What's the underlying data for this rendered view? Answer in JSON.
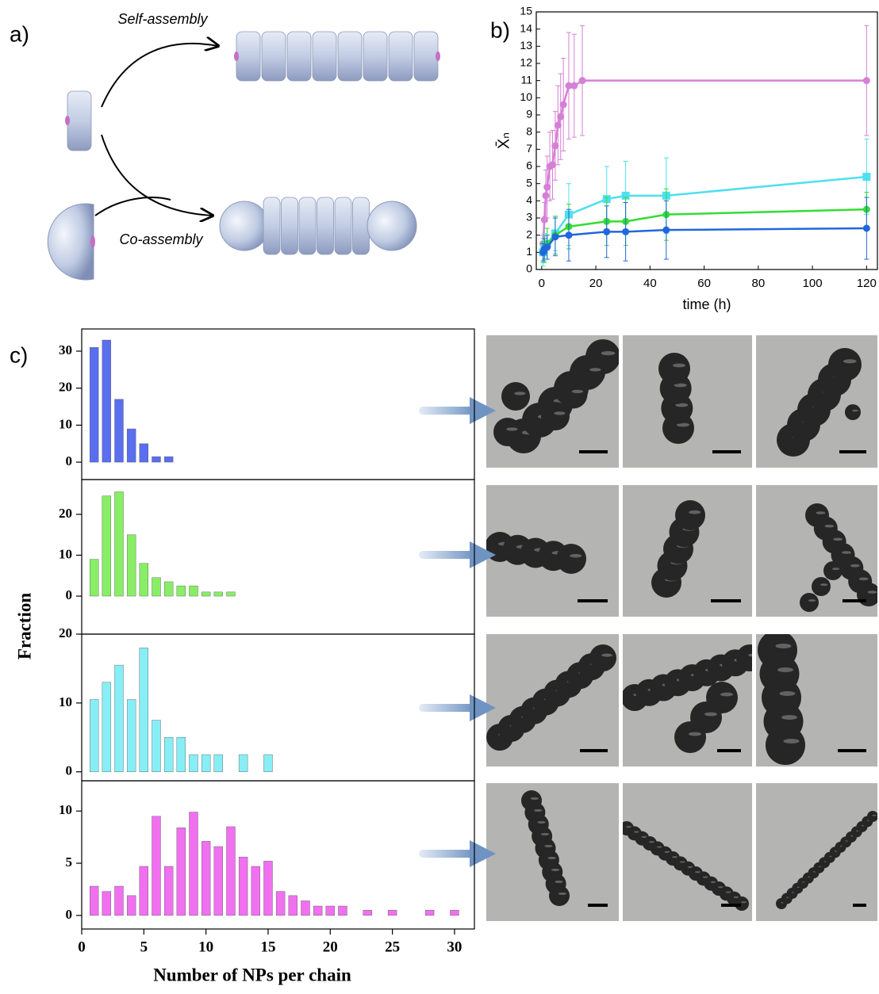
{
  "panel_labels": [
    "a)",
    "b)",
    "c)"
  ],
  "diagram": {
    "self_assembly": "Self-assembly",
    "co_assembly": "Co-assembly"
  },
  "chart_data": [
    {
      "type": "line",
      "xlabel": "time (h)",
      "ylabel": "X̄ₙ",
      "xlim": [
        -2,
        124
      ],
      "xticks": [
        0,
        20,
        40,
        60,
        80,
        100,
        120
      ],
      "ylim": [
        0,
        15
      ],
      "yticks": [
        0,
        1,
        2,
        3,
        4,
        5,
        6,
        7,
        8,
        9,
        10,
        11,
        12,
        13,
        14,
        15
      ],
      "series": [
        {
          "color": "#d67fd6",
          "marker": "circle",
          "x": [
            0.5,
            1,
            1.5,
            2,
            3,
            4,
            5,
            6,
            7,
            8,
            10,
            12,
            15,
            120
          ],
          "values": [
            1.5,
            2.9,
            4.3,
            4.8,
            6.0,
            6.1,
            7.2,
            8.4,
            8.9,
            9.6,
            10.7,
            10.7,
            11.0,
            11.0
          ],
          "errors": [
            0.5,
            1.0,
            1.5,
            1.8,
            2.0,
            2.0,
            2.0,
            2.3,
            2.5,
            2.7,
            3.1,
            3.0,
            3.2,
            3.2
          ]
        },
        {
          "color": "#4de0f0",
          "marker": "square",
          "x": [
            0.5,
            1,
            2,
            5,
            10,
            24,
            31,
            46,
            120
          ],
          "values": [
            1.0,
            1.3,
            1.5,
            2.1,
            3.2,
            4.1,
            4.3,
            4.3,
            5.4
          ],
          "errors": [
            0.8,
            0.8,
            0.9,
            1.0,
            1.8,
            1.9,
            2.0,
            2.2,
            2.2
          ]
        },
        {
          "color": "#33dd33",
          "marker": "circle",
          "x": [
            0.5,
            1,
            2,
            5,
            10,
            24,
            31,
            46,
            120
          ],
          "values": [
            1.0,
            1.2,
            1.5,
            2.0,
            2.5,
            2.8,
            2.8,
            3.2,
            3.5
          ],
          "errors": [
            0.6,
            0.8,
            0.9,
            1.1,
            1.3,
            1.4,
            1.4,
            1.5,
            1.0
          ]
        },
        {
          "color": "#2266dd",
          "marker": "circle",
          "x": [
            0.5,
            1,
            2,
            5,
            10,
            24,
            31,
            46,
            120
          ],
          "values": [
            1.0,
            1.2,
            1.3,
            1.9,
            2.0,
            2.2,
            2.2,
            2.3,
            2.4
          ],
          "errors": [
            0.5,
            0.6,
            0.7,
            1.1,
            1.5,
            1.5,
            1.7,
            1.7,
            1.8
          ]
        }
      ]
    },
    {
      "type": "bar",
      "color": "#5a6ef0",
      "xlim": [
        0,
        31.6
      ],
      "x": [
        1,
        2,
        3,
        4,
        5,
        6,
        7
      ],
      "values": [
        31,
        33,
        17,
        9,
        5,
        1.5,
        1.5
      ],
      "ylim": [
        -4.7,
        36
      ],
      "yticks": [
        0,
        10,
        20,
        30
      ]
    },
    {
      "type": "bar",
      "color": "#88ee66",
      "xlim": [
        0,
        31.6
      ],
      "x": [
        1,
        2,
        3,
        4,
        5,
        6,
        7,
        8,
        9,
        10,
        11,
        12
      ],
      "values": [
        9,
        24.5,
        25.5,
        15,
        8,
        4.5,
        3.5,
        2.5,
        2.5,
        1,
        1,
        1
      ],
      "ylim": [
        -9.3,
        28.5
      ],
      "yticks": [
        0,
        10,
        20
      ]
    },
    {
      "type": "bar",
      "color": "#88eef5",
      "xlim": [
        0,
        31.6
      ],
      "ylabel": "Fraction",
      "x": [
        1,
        2,
        3,
        4,
        5,
        6,
        7,
        8,
        9,
        10,
        11,
        12,
        13,
        14,
        15
      ],
      "values": [
        10.5,
        13,
        15.5,
        10.5,
        18,
        7.5,
        5,
        5,
        2.5,
        2.5,
        2.5,
        0,
        2.5,
        0,
        2.5
      ],
      "ylim": [
        -1.3,
        20
      ],
      "yticks": [
        0,
        10,
        20
      ]
    },
    {
      "type": "bar",
      "color": "#f070f0",
      "xlim": [
        0,
        31.6
      ],
      "xticks": [
        0,
        5,
        10,
        15,
        20,
        25,
        30
      ],
      "xlabel": "Number of NPs per chain",
      "x": [
        1,
        2,
        3,
        4,
        5,
        6,
        7,
        8,
        9,
        10,
        11,
        12,
        13,
        14,
        15,
        16,
        17,
        18,
        19,
        20,
        21,
        23,
        25,
        28,
        30
      ],
      "values": [
        2.8,
        2.3,
        2.8,
        1.9,
        4.7,
        9.5,
        4.7,
        8.4,
        9.9,
        7.1,
        6.6,
        8.5,
        5.6,
        4.7,
        5.2,
        2.3,
        1.9,
        1.4,
        0.9,
        0.9,
        0.9,
        0.5,
        0.5,
        0.5,
        0.5
      ],
      "ylim": [
        -1.3,
        12.9
      ],
      "yticks": [
        0,
        5,
        10
      ]
    }
  ]
}
